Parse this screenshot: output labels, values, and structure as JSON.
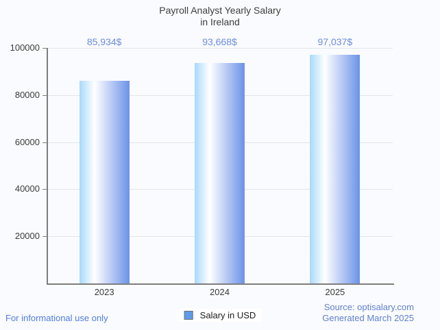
{
  "title": {
    "line1": "Payroll Analyst Yearly Salary",
    "line2": "in Ireland"
  },
  "chart_data": {
    "type": "bar",
    "title": "Payroll Analyst Yearly Salary in Ireland",
    "categories": [
      "2023",
      "2024",
      "2025"
    ],
    "values": [
      85934,
      93668,
      97037
    ],
    "value_labels": [
      "85,934$",
      "93,668$",
      "97,037$"
    ],
    "series_name": "Salary in USD",
    "xlabel": "",
    "ylabel": "",
    "ylim": [
      0,
      100000
    ],
    "yticks": [
      20000,
      40000,
      60000,
      80000,
      100000
    ],
    "grid": true,
    "legend_position": "bottom-center"
  },
  "legend": {
    "label": "Salary in USD"
  },
  "footer": {
    "left_note": "For informational use only",
    "source": "Source: optisalary.com",
    "generated": "Generated March 2025"
  },
  "colors": {
    "background": "#fafbfe",
    "title_color": "#3d3d3d",
    "axis_label": "#3a3a3a",
    "grid_line": "#e0e4ea",
    "axis_line": "#7d7d7d",
    "bar_gradient_left": "#a7d9fc",
    "bar_gradient_mid": "#ffffff",
    "bar_gradient_right": "#6b92e8",
    "value_label": "#6c8ce0",
    "legend_swatch": "#5e9ce8",
    "legend_swatch_border": "#707070",
    "legend_text": "#1b1b1b",
    "footer_left": "#4f7ce0",
    "source_text": "#5f7fcb"
  }
}
